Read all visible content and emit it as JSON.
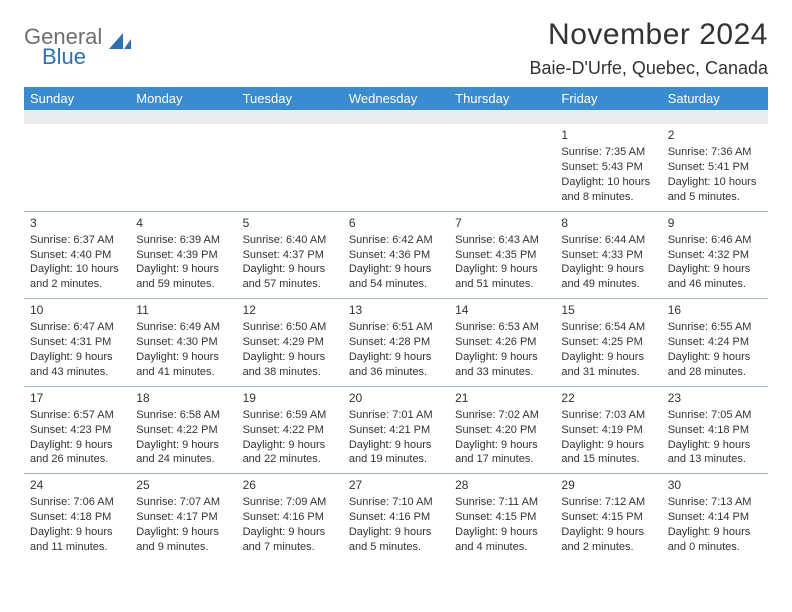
{
  "logo": {
    "general": "General",
    "blue": "Blue"
  },
  "title": "November 2024",
  "location": "Baie-D'Urfe, Quebec, Canada",
  "colors": {
    "header_bg": "#3b8bd0",
    "header_text": "#ffffff",
    "spacer_bg": "#e9edf0",
    "border": "#9ab4cc",
    "text": "#333333",
    "logo_grey": "#6f6f6f",
    "logo_blue": "#2f6fb3"
  },
  "dow": [
    "Sunday",
    "Monday",
    "Tuesday",
    "Wednesday",
    "Thursday",
    "Friday",
    "Saturday"
  ],
  "weeks": [
    [
      null,
      null,
      null,
      null,
      null,
      {
        "n": "1",
        "sr": "Sunrise: 7:35 AM",
        "ss": "Sunset: 5:43 PM",
        "dl": "Daylight: 10 hours and 8 minutes."
      },
      {
        "n": "2",
        "sr": "Sunrise: 7:36 AM",
        "ss": "Sunset: 5:41 PM",
        "dl": "Daylight: 10 hours and 5 minutes."
      }
    ],
    [
      {
        "n": "3",
        "sr": "Sunrise: 6:37 AM",
        "ss": "Sunset: 4:40 PM",
        "dl": "Daylight: 10 hours and 2 minutes."
      },
      {
        "n": "4",
        "sr": "Sunrise: 6:39 AM",
        "ss": "Sunset: 4:39 PM",
        "dl": "Daylight: 9 hours and 59 minutes."
      },
      {
        "n": "5",
        "sr": "Sunrise: 6:40 AM",
        "ss": "Sunset: 4:37 PM",
        "dl": "Daylight: 9 hours and 57 minutes."
      },
      {
        "n": "6",
        "sr": "Sunrise: 6:42 AM",
        "ss": "Sunset: 4:36 PM",
        "dl": "Daylight: 9 hours and 54 minutes."
      },
      {
        "n": "7",
        "sr": "Sunrise: 6:43 AM",
        "ss": "Sunset: 4:35 PM",
        "dl": "Daylight: 9 hours and 51 minutes."
      },
      {
        "n": "8",
        "sr": "Sunrise: 6:44 AM",
        "ss": "Sunset: 4:33 PM",
        "dl": "Daylight: 9 hours and 49 minutes."
      },
      {
        "n": "9",
        "sr": "Sunrise: 6:46 AM",
        "ss": "Sunset: 4:32 PM",
        "dl": "Daylight: 9 hours and 46 minutes."
      }
    ],
    [
      {
        "n": "10",
        "sr": "Sunrise: 6:47 AM",
        "ss": "Sunset: 4:31 PM",
        "dl": "Daylight: 9 hours and 43 minutes."
      },
      {
        "n": "11",
        "sr": "Sunrise: 6:49 AM",
        "ss": "Sunset: 4:30 PM",
        "dl": "Daylight: 9 hours and 41 minutes."
      },
      {
        "n": "12",
        "sr": "Sunrise: 6:50 AM",
        "ss": "Sunset: 4:29 PM",
        "dl": "Daylight: 9 hours and 38 minutes."
      },
      {
        "n": "13",
        "sr": "Sunrise: 6:51 AM",
        "ss": "Sunset: 4:28 PM",
        "dl": "Daylight: 9 hours and 36 minutes."
      },
      {
        "n": "14",
        "sr": "Sunrise: 6:53 AM",
        "ss": "Sunset: 4:26 PM",
        "dl": "Daylight: 9 hours and 33 minutes."
      },
      {
        "n": "15",
        "sr": "Sunrise: 6:54 AM",
        "ss": "Sunset: 4:25 PM",
        "dl": "Daylight: 9 hours and 31 minutes."
      },
      {
        "n": "16",
        "sr": "Sunrise: 6:55 AM",
        "ss": "Sunset: 4:24 PM",
        "dl": "Daylight: 9 hours and 28 minutes."
      }
    ],
    [
      {
        "n": "17",
        "sr": "Sunrise: 6:57 AM",
        "ss": "Sunset: 4:23 PM",
        "dl": "Daylight: 9 hours and 26 minutes."
      },
      {
        "n": "18",
        "sr": "Sunrise: 6:58 AM",
        "ss": "Sunset: 4:22 PM",
        "dl": "Daylight: 9 hours and 24 minutes."
      },
      {
        "n": "19",
        "sr": "Sunrise: 6:59 AM",
        "ss": "Sunset: 4:22 PM",
        "dl": "Daylight: 9 hours and 22 minutes."
      },
      {
        "n": "20",
        "sr": "Sunrise: 7:01 AM",
        "ss": "Sunset: 4:21 PM",
        "dl": "Daylight: 9 hours and 19 minutes."
      },
      {
        "n": "21",
        "sr": "Sunrise: 7:02 AM",
        "ss": "Sunset: 4:20 PM",
        "dl": "Daylight: 9 hours and 17 minutes."
      },
      {
        "n": "22",
        "sr": "Sunrise: 7:03 AM",
        "ss": "Sunset: 4:19 PM",
        "dl": "Daylight: 9 hours and 15 minutes."
      },
      {
        "n": "23",
        "sr": "Sunrise: 7:05 AM",
        "ss": "Sunset: 4:18 PM",
        "dl": "Daylight: 9 hours and 13 minutes."
      }
    ],
    [
      {
        "n": "24",
        "sr": "Sunrise: 7:06 AM",
        "ss": "Sunset: 4:18 PM",
        "dl": "Daylight: 9 hours and 11 minutes."
      },
      {
        "n": "25",
        "sr": "Sunrise: 7:07 AM",
        "ss": "Sunset: 4:17 PM",
        "dl": "Daylight: 9 hours and 9 minutes."
      },
      {
        "n": "26",
        "sr": "Sunrise: 7:09 AM",
        "ss": "Sunset: 4:16 PM",
        "dl": "Daylight: 9 hours and 7 minutes."
      },
      {
        "n": "27",
        "sr": "Sunrise: 7:10 AM",
        "ss": "Sunset: 4:16 PM",
        "dl": "Daylight: 9 hours and 5 minutes."
      },
      {
        "n": "28",
        "sr": "Sunrise: 7:11 AM",
        "ss": "Sunset: 4:15 PM",
        "dl": "Daylight: 9 hours and 4 minutes."
      },
      {
        "n": "29",
        "sr": "Sunrise: 7:12 AM",
        "ss": "Sunset: 4:15 PM",
        "dl": "Daylight: 9 hours and 2 minutes."
      },
      {
        "n": "30",
        "sr": "Sunrise: 7:13 AM",
        "ss": "Sunset: 4:14 PM",
        "dl": "Daylight: 9 hours and 0 minutes."
      }
    ]
  ]
}
